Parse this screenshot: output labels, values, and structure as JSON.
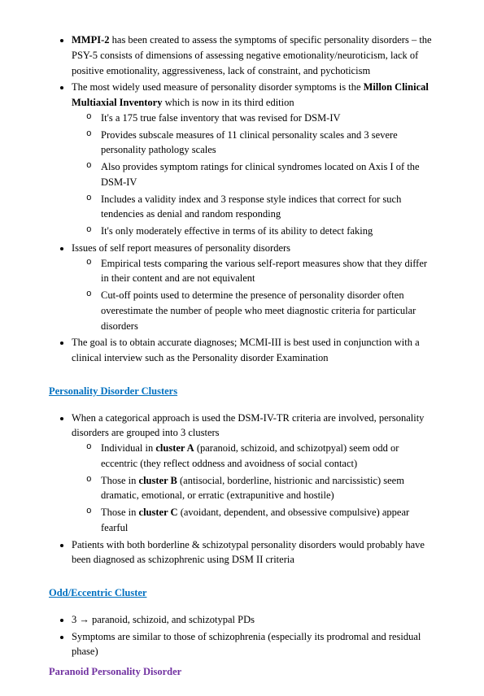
{
  "topSection": {
    "b1": {
      "pre": "",
      "bold": "MMPI-2",
      "post": " has been created to assess the symptoms of specific personality disorders – the PSY-5 consists of dimensions of assessing negative emotionality/neuroticism, lack of positive emotionality, aggressiveness, lack of constraint, and pychoticism"
    },
    "b2": {
      "pre": "The most widely used measure of personality disorder symptoms is the ",
      "bold": "Millon Clinical Multiaxial Inventory",
      "post": " which is now in its third edition"
    },
    "b2_sub": [
      "It's a 175 true false inventory that was revised for DSM-IV",
      "Provides subscale measures of 11 clinical personality scales and 3 severe personality pathology scales",
      "Also provides symptom ratings for clinical syndromes located on Axis I of the DSM-IV",
      "Includes a validity index and 3 response style indices that correct for such tendencies as denial and random responding",
      "It's only moderately effective in terms of its ability to detect faking"
    ],
    "b3": "Issues of self report measures of personality disorders",
    "b3_sub": [
      "Empirical tests comparing the various self-report measures show that they differ in their content and are not equivalent",
      "Cut-off points used to determine the presence of personality disorder often overestimate the number of people who meet diagnostic criteria for particular disorders"
    ],
    "b4": "The goal is to obtain accurate diagnoses; MCMI-III is best used in conjunction with a clinical interview such as the Personality disorder Examination"
  },
  "heading1": "Personality Disorder Clusters",
  "clustersSection": {
    "b1": "When a categorical approach is used the DSM-IV-TR criteria are involved, personality disorders are grouped into 3 clusters",
    "b1_sub": {
      "a": {
        "pre": "Individual in ",
        "bold": "cluster A",
        "post": " (paranoid, schizoid, and schizotpyal) seem odd or eccentric (they reflect oddness and avoidness of social contact)"
      },
      "b": {
        "pre": "Those in ",
        "bold": "cluster B",
        "post": " (antisocial, borderline, histrionic and narcissistic) seem dramatic, emotional, or erratic (extrapunitive and hostile)"
      },
      "c": {
        "pre": "Those in ",
        "bold": "cluster C",
        "post": " (avoidant, dependent, and obsessive compulsive) appear fearful"
      }
    },
    "b2": "Patients with both borderline & schizotypal personality disorders would probably have been diagnosed as schizophrenic using DSM II criteria"
  },
  "heading2": "Odd/Eccentric Cluster",
  "oddSection": {
    "b1": "3 → paranoid, schizoid, and schizotypal PDs",
    "b2": "Symptoms are similar to those of schizophrenia (especially its prodromal and residual phase)"
  },
  "heading3": "Paranoid Personality Disorder"
}
